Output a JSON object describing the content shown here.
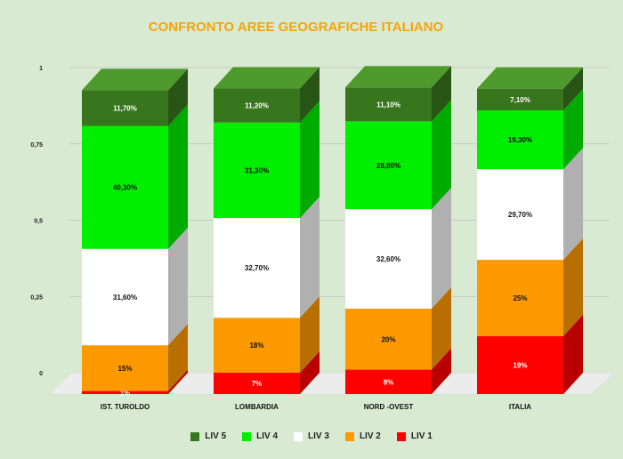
{
  "chart_data": {
    "type": "bar",
    "stacked": true,
    "three_d": true,
    "title": "CONFRONTO AREE GEOGRAFICHE ITALIANO",
    "xlabel": "",
    "ylabel": "",
    "ylim": [
      0,
      1
    ],
    "yticks": [
      "0",
      "0,25",
      "0,5",
      "0,75",
      "1"
    ],
    "grid": true,
    "legend_position": "bottom",
    "categories": [
      "IST. TUROLDO",
      "LOMBARDIA",
      "NORD -OVEST",
      "ITALIA"
    ],
    "series": [
      {
        "name": "LIV 1",
        "color": "#ff0000",
        "values": [
          0.01,
          0.07,
          0.08,
          0.19
        ],
        "labels": [
          "1%",
          "7%",
          "8%",
          "19%"
        ]
      },
      {
        "name": "LIV 2",
        "color": "#ff9900",
        "values": [
          0.15,
          0.18,
          0.2,
          0.25
        ],
        "labels": [
          "15%",
          "18%",
          "20%",
          "25%"
        ]
      },
      {
        "name": "LIV 3",
        "color": "#ffffff",
        "values": [
          0.316,
          0.327,
          0.326,
          0.297
        ],
        "labels": [
          "31,60%",
          "32,70%",
          "32,60%",
          "29,70%"
        ]
      },
      {
        "name": "LIV 4",
        "color": "#00ee00",
        "values": [
          0.403,
          0.313,
          0.288,
          0.193
        ],
        "labels": [
          "40,30%",
          "31,30%",
          "28,80%",
          "19,30%"
        ]
      },
      {
        "name": "LIV 5",
        "color": "#38761d",
        "values": [
          0.117,
          0.112,
          0.111,
          0.071
        ],
        "labels": [
          "11,70%",
          "11,20%",
          "11,10%",
          "7,10%"
        ]
      }
    ]
  }
}
